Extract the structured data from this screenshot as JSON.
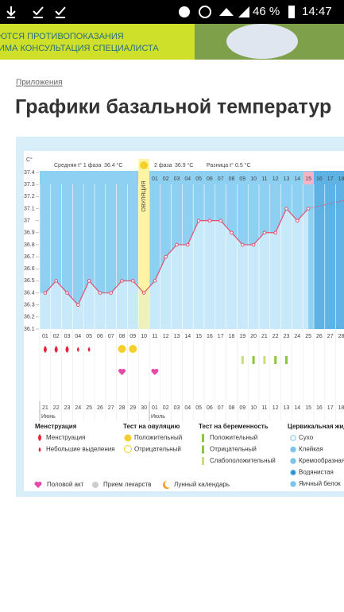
{
  "status_bar": {
    "battery": "46 %",
    "time": "14:47"
  },
  "banner": {
    "lines": [
      "ЮТСЯ ПРОТИВОПОКАЗАНИЯ",
      "ИМА КОНСУЛЬТАЦИЯ СПЕЦИАЛИСТА"
    ]
  },
  "breadcrumb": "Приложения",
  "title": "Графики базальной температур",
  "chart": {
    "y_unit": "C°",
    "ylim": [
      36.1,
      37.4
    ],
    "yticks": [
      36.1,
      36.2,
      36.3,
      36.4,
      36.5,
      36.6,
      36.7,
      36.8,
      36.9,
      37.0,
      37.1,
      37.2,
      37.3,
      37.4
    ],
    "phase1_label": "Средняя t° 1 фаза",
    "phase1_value": "36.4 °C",
    "phase2_label": "2 фаза",
    "phase2_value": "36.9 °C",
    "diff_label": "Разница t°",
    "diff_value": "0.5 °C",
    "ovulation_label": "ОВУЛЯЦИЯ",
    "ovulation_index": 9,
    "today_index": 24,
    "phase2_start": 10,
    "phase2_days": [
      "01",
      "02",
      "03",
      "04",
      "05",
      "06",
      "07",
      "08",
      "09",
      "10",
      "11",
      "12",
      "13",
      "14",
      "15",
      "16",
      "17",
      "18"
    ],
    "cycle_days": [
      "01",
      "02",
      "03",
      "04",
      "05",
      "06",
      "07",
      "08",
      "09",
      "10",
      "11",
      "12",
      "13",
      "14",
      "15",
      "16",
      "17",
      "18",
      "19",
      "20",
      "21",
      "22",
      "23",
      "24",
      "25",
      "26",
      "27",
      "28"
    ],
    "temps": [
      36.4,
      36.5,
      36.4,
      36.3,
      36.5,
      36.4,
      36.4,
      36.5,
      36.5,
      36.4,
      36.5,
      36.7,
      36.8,
      36.8,
      37.0,
      37.0,
      37.0,
      36.9,
      36.8,
      36.8,
      36.9,
      36.9,
      37.1,
      37.0,
      37.1
    ],
    "dates": [
      "21",
      "22",
      "23",
      "24",
      "25",
      "26",
      "27",
      "28",
      "29",
      "30",
      "01",
      "02",
      "03",
      "04",
      "05",
      "06",
      "07",
      "08",
      "09",
      "10",
      "11",
      "12",
      "13",
      "14",
      "15",
      "16",
      "17",
      "18"
    ],
    "red_dates": [
      2,
      3,
      9,
      10,
      16,
      17,
      23,
      24
    ],
    "months": [
      {
        "index": 0,
        "label": "Июнь"
      },
      {
        "index": 10,
        "label": "Июль"
      }
    ],
    "menstruation": [
      {
        "index": 0,
        "size": "big"
      },
      {
        "index": 1,
        "size": "big"
      },
      {
        "index": 2,
        "size": "big"
      },
      {
        "index": 3,
        "size": "small"
      },
      {
        "index": 4,
        "size": "small"
      }
    ],
    "ovulation_tests": [
      7,
      8
    ],
    "pregnancy_tests": [
      {
        "index": 18,
        "kind": "weak"
      },
      {
        "index": 19,
        "kind": "positive"
      },
      {
        "index": 20,
        "kind": "weak"
      },
      {
        "index": 21,
        "kind": "positive"
      },
      {
        "index": 22,
        "kind": "positive"
      }
    ],
    "intercourse": [
      7,
      10
    ]
  },
  "legend": {
    "menstruation": {
      "heading": "Менструация",
      "items": [
        "Менструация",
        "Небольшие выделения"
      ]
    },
    "ovulation": {
      "heading": "Тест на овуляцию",
      "items": [
        "Положительный",
        "Отрицательный"
      ]
    },
    "pregnancy": {
      "heading": "Тест на беременность",
      "items": [
        "Положительный",
        "Отрицательный",
        "Слабоположительный"
      ]
    },
    "cervical": {
      "heading": "Цервикальная жид",
      "items": [
        "Сухо",
        "Клейкая",
        "Кремообразная",
        "Водянистая",
        "Яичный белок"
      ]
    },
    "other": [
      "Половой акт",
      "Прием лекарств",
      "Лунный календарь"
    ]
  }
}
